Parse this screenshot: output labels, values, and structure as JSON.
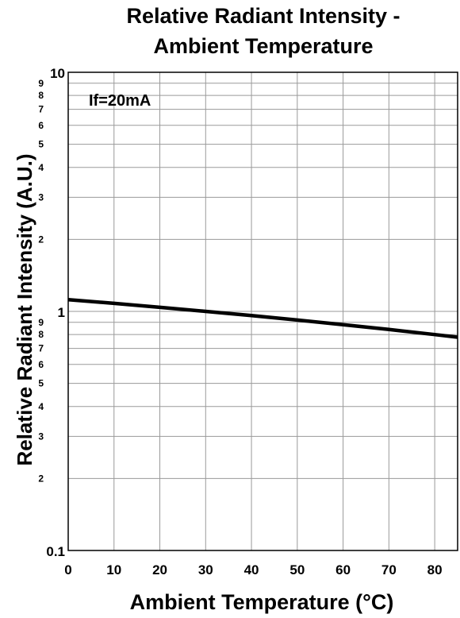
{
  "chart_data": {
    "type": "line",
    "title_lines": [
      "Relative Radiant Intensity -",
      "Ambient Temperature"
    ],
    "xlabel": "Ambient Temperature (°C)",
    "ylabel": "Relative Radiant Intensity (A.U.)",
    "annotation": "If=20mA",
    "xlim": [
      0,
      85
    ],
    "ylim": [
      0.1,
      10
    ],
    "yscale": "log",
    "grid": true,
    "x_ticks": [
      0,
      10,
      20,
      30,
      40,
      50,
      60,
      70,
      80
    ],
    "y_major_ticks": [
      {
        "value": 0.1,
        "label": "0.1"
      },
      {
        "value": 1,
        "label": "1"
      },
      {
        "value": 10,
        "label": "10"
      }
    ],
    "y_minor_ticks": [
      {
        "value": 0.2,
        "label": "2"
      },
      {
        "value": 0.3,
        "label": "3"
      },
      {
        "value": 0.4,
        "label": "4"
      },
      {
        "value": 0.5,
        "label": "5"
      },
      {
        "value": 0.6,
        "label": "6"
      },
      {
        "value": 0.7,
        "label": "7"
      },
      {
        "value": 0.8,
        "label": "8"
      },
      {
        "value": 0.9,
        "label": "9"
      },
      {
        "value": 2,
        "label": "2"
      },
      {
        "value": 3,
        "label": "3"
      },
      {
        "value": 4,
        "label": "4"
      },
      {
        "value": 5,
        "label": "5"
      },
      {
        "value": 6,
        "label": "6"
      },
      {
        "value": 7,
        "label": "7"
      },
      {
        "value": 8,
        "label": "8"
      },
      {
        "value": 9,
        "label": "9"
      }
    ],
    "series": [
      {
        "color": "#000000",
        "x": [
          0,
          10,
          20,
          30,
          40,
          50,
          60,
          70,
          80,
          85
        ],
        "y": [
          1.12,
          1.08,
          1.04,
          1.0,
          0.96,
          0.92,
          0.88,
          0.84,
          0.8,
          0.78
        ]
      }
    ]
  }
}
